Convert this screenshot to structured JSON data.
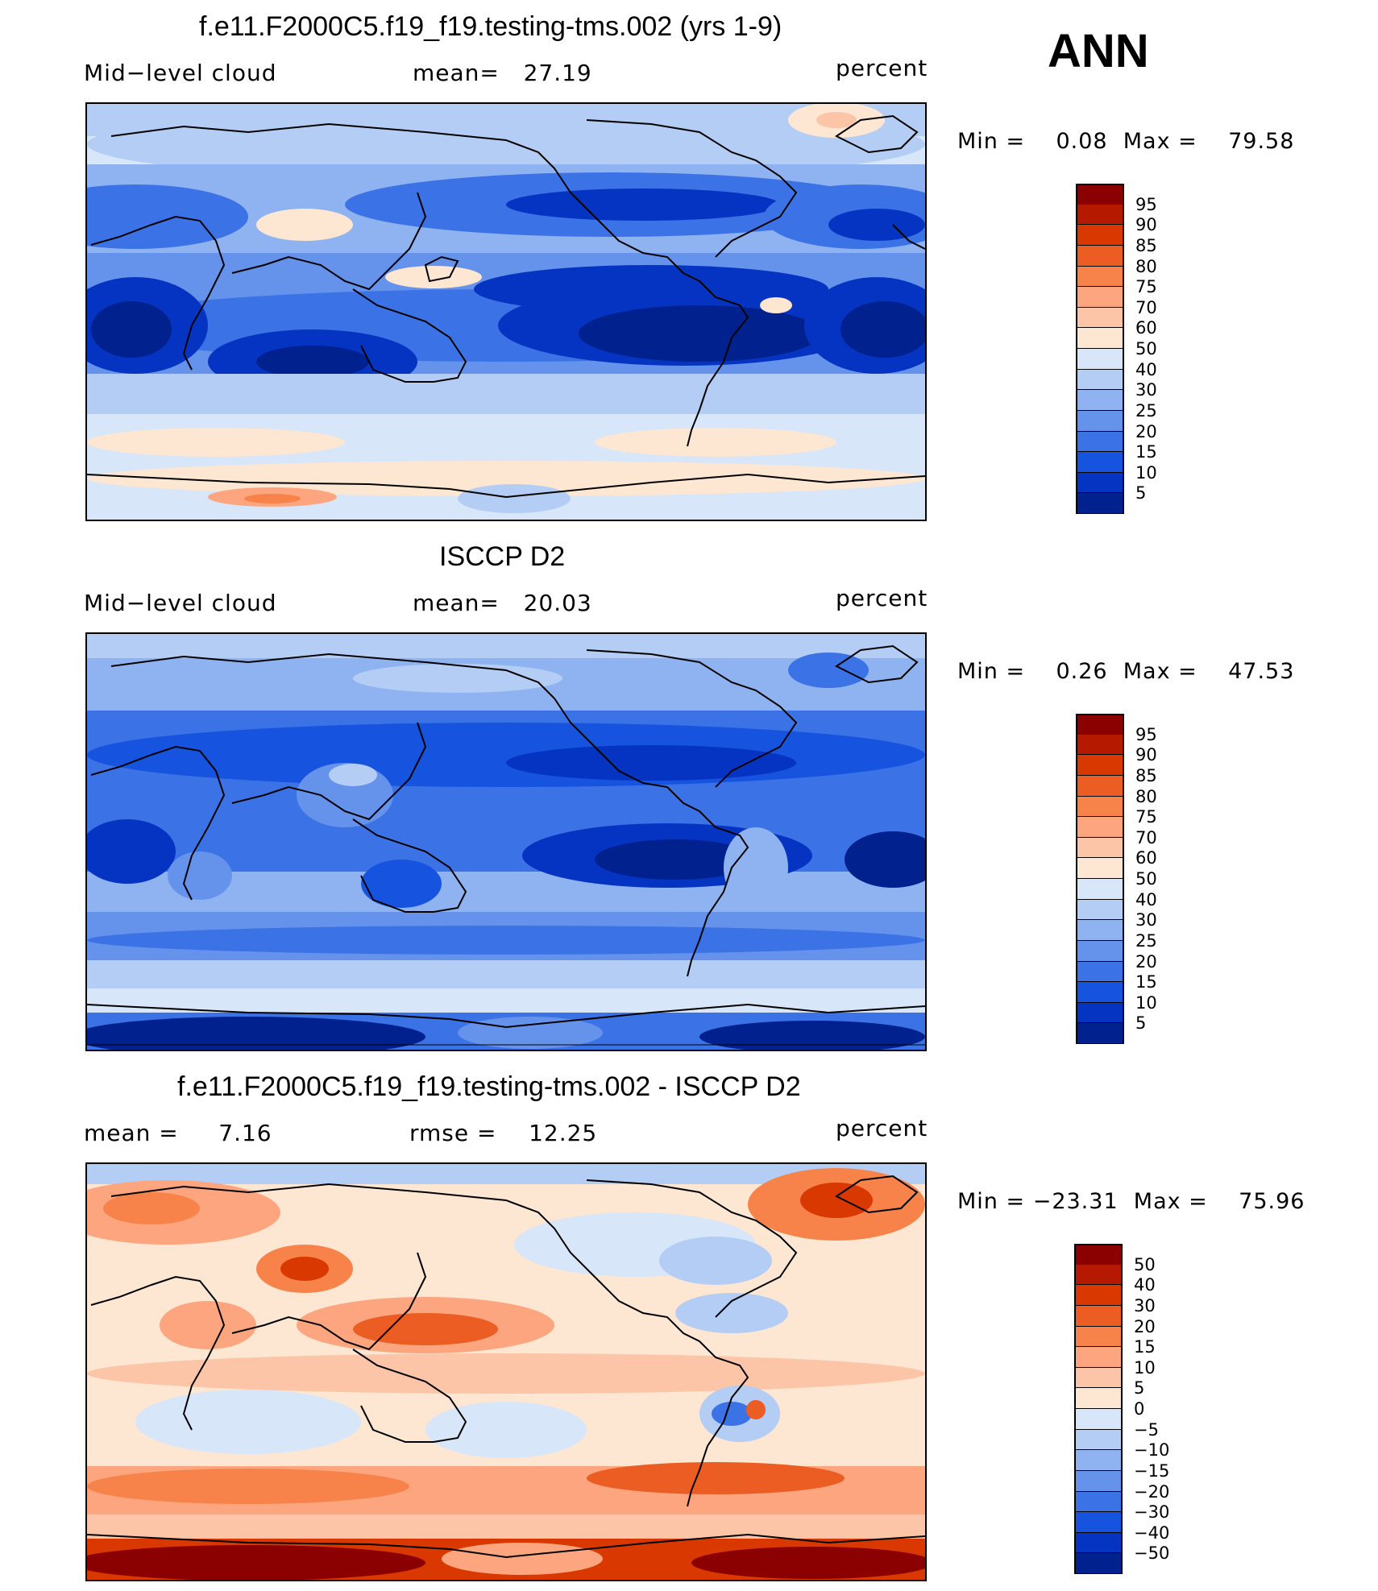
{
  "chart_data": [
    {
      "type": "heatmap",
      "title": "f.e11.F2000C5.f19_f19.testing-tms.002 (yrs 1-9)",
      "variable": "Mid−level cloud",
      "stat_text": "mean=   27.19",
      "units": "percent",
      "min_max_text": "Min =    0.08  Max =    79.58",
      "mean": 27.19,
      "min": 0.08,
      "max": 79.58,
      "colorbar_levels": [
        "95",
        "90",
        "85",
        "80",
        "75",
        "70",
        "60",
        "50",
        "40",
        "30",
        "25",
        "20",
        "15",
        "10",
        "5"
      ],
      "colorbar_colors": [
        "#8b0000",
        "#b51a00",
        "#d93800",
        "#ec5d24",
        "#f7834a",
        "#fca57f",
        "#fcc5a8",
        "#fde6d2",
        "#d7e6f9",
        "#b3cdf5",
        "#8fb2f0",
        "#6593ec",
        "#3b73e6",
        "#1653df",
        "#0634c2",
        "#00218e"
      ]
    },
    {
      "type": "heatmap",
      "title": "ISCCP D2",
      "variable": "Mid−level cloud",
      "stat_text": "mean=   20.03",
      "units": "percent",
      "min_max_text": "Min =    0.26  Max =    47.53",
      "mean": 20.03,
      "min": 0.26,
      "max": 47.53,
      "colorbar_levels": [
        "95",
        "90",
        "85",
        "80",
        "75",
        "70",
        "60",
        "50",
        "40",
        "30",
        "25",
        "20",
        "15",
        "10",
        "5"
      ],
      "colorbar_colors": [
        "#8b0000",
        "#b51a00",
        "#d93800",
        "#ec5d24",
        "#f7834a",
        "#fca57f",
        "#fcc5a8",
        "#fde6d2",
        "#d7e6f9",
        "#b3cdf5",
        "#8fb2f0",
        "#6593ec",
        "#3b73e6",
        "#1653df",
        "#0634c2",
        "#00218e"
      ]
    },
    {
      "type": "heatmap",
      "title": "f.e11.F2000C5.f19_f19.testing-tms.002 - ISCCP D2",
      "stat_text": "mean =     7.16",
      "stat2_text": "rmse =    12.25",
      "units": "percent",
      "min_max_text": "Min = −23.31  Max =    75.96",
      "mean": 7.16,
      "rmse": 12.25,
      "min": -23.31,
      "max": 75.96,
      "colorbar_levels": [
        "50",
        "40",
        "30",
        "20",
        "15",
        "10",
        "5",
        "0",
        "−5",
        "−10",
        "−15",
        "−20",
        "−30",
        "−40",
        "−50"
      ],
      "colorbar_colors": [
        "#8b0000",
        "#b51a00",
        "#d93800",
        "#ec5d24",
        "#f7834a",
        "#fca57f",
        "#fcc5a8",
        "#fde6d2",
        "#d7e6f9",
        "#b3cdf5",
        "#8fb2f0",
        "#6593ec",
        "#3b73e6",
        "#1653df",
        "#0634c2",
        "#00218e"
      ]
    }
  ],
  "season": "ANN"
}
